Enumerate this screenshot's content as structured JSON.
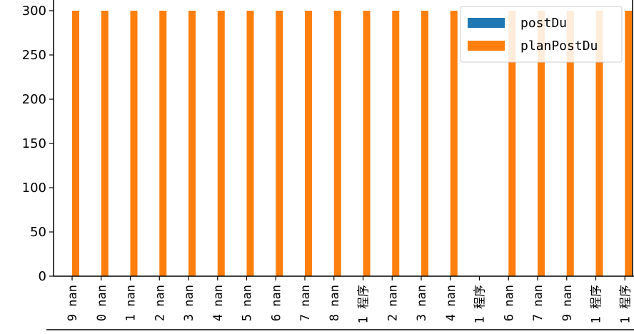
{
  "chart_data": {
    "type": "bar",
    "ylim": [
      0,
      300
    ],
    "yticks": [
      0,
      50,
      100,
      150,
      200,
      250,
      300
    ],
    "categories": [
      "9 nan",
      "0 nan",
      "1 nan",
      "2 nan",
      "3 nan",
      "4 nan",
      "5 nan",
      "6 nan",
      "7 nan",
      "8 nan",
      "1 程序",
      "2 nan",
      "3 nan",
      "4 nan",
      "1 程序",
      "6 nan",
      "7 nan",
      "9 nan",
      "1 程序",
      "1 程序"
    ],
    "series": [
      {
        "name": "postDu",
        "color": "#1f77b4",
        "values": [
          0,
          0,
          0,
          0,
          0,
          0,
          0,
          0,
          0,
          0,
          0,
          0,
          0,
          0,
          0,
          0,
          0,
          0,
          0,
          0
        ]
      },
      {
        "name": "planPostDu",
        "color": "#ff7f0e",
        "values": [
          300,
          300,
          300,
          300,
          300,
          300,
          300,
          300,
          300,
          300,
          300,
          300,
          300,
          300,
          0,
          300,
          300,
          300,
          300,
          300
        ]
      }
    ],
    "legend_position": "top-right",
    "grid": false
  }
}
